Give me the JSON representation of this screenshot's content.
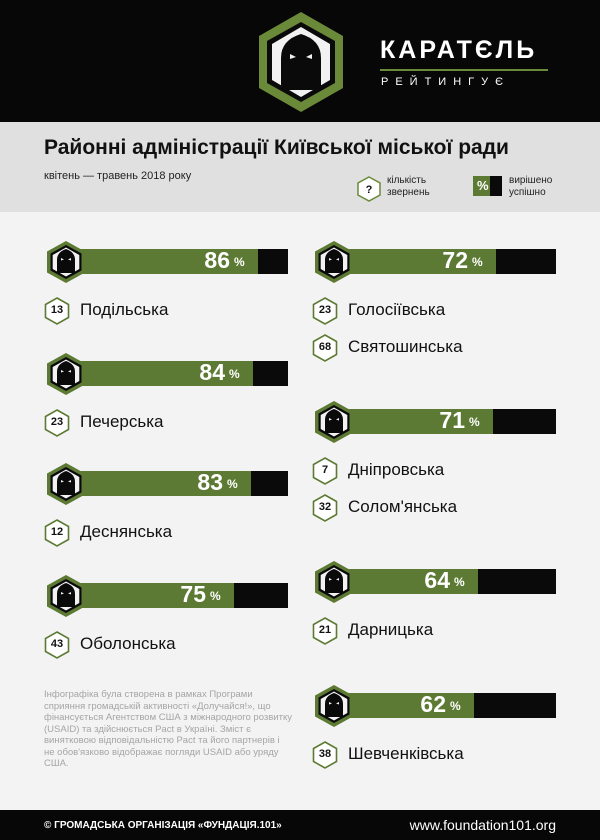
{
  "header": {
    "brand": "КАРАТЄЛЬ",
    "subtitle": "РЕЙТИНГУЄ"
  },
  "title": "Районні адміністрації Київської міської ради",
  "period": "квітень — травень 2018 року",
  "legend": {
    "question_symbol": "?",
    "question_label": "кількість звернень",
    "percent_symbol": "%",
    "percent_label": "вирішено успішно"
  },
  "colors": {
    "green": "#5c7a33",
    "black": "#0a0a0a"
  },
  "chart_data": {
    "type": "bar",
    "unit": "%",
    "groups": [
      {
        "percent": 86,
        "districts": [
          {
            "count": 13,
            "name": "Подільська"
          }
        ]
      },
      {
        "percent": 84,
        "districts": [
          {
            "count": 23,
            "name": "Печерська"
          }
        ]
      },
      {
        "percent": 83,
        "districts": [
          {
            "count": 12,
            "name": "Деснянська"
          }
        ]
      },
      {
        "percent": 75,
        "districts": [
          {
            "count": 43,
            "name": "Оболонська"
          }
        ]
      },
      {
        "percent": 72,
        "districts": [
          {
            "count": 23,
            "name": "Голосіївська"
          },
          {
            "count": 68,
            "name": "Святошинська"
          }
        ]
      },
      {
        "percent": 71,
        "districts": [
          {
            "count": 7,
            "name": "Дніпровська"
          },
          {
            "count": 32,
            "name": "Солом'янська"
          }
        ]
      },
      {
        "percent": 64,
        "districts": [
          {
            "count": 21,
            "name": "Дарницька"
          }
        ]
      },
      {
        "percent": 62,
        "districts": [
          {
            "count": 38,
            "name": "Шевченківська"
          }
        ]
      }
    ]
  },
  "disclaimer": "Інфографіка була створена в рамках Програми сприяння громадській активності «Долучайся!», що фінансується Агентством США з міжнародного розвитку (USAID) та здійснюється Pact в Україні. Зміст є винятковою відповідальністю Pact та його партнерів і не обов'язково відображає погляди USAID або уряду США.",
  "footer": {
    "copyright": "© ГРОМАДСЬКА ОРГАНІЗАЦІЯ «ФУНДАЦІЯ.101»",
    "url": "www.foundation101.org"
  }
}
